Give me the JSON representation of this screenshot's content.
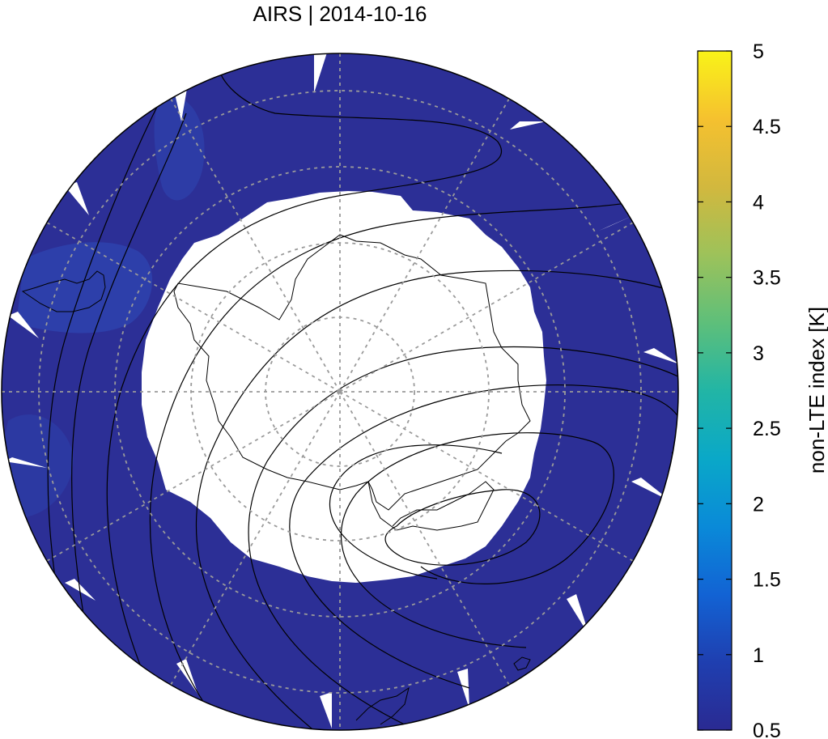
{
  "title": "AIRS | 2014-10-16",
  "colorbar": {
    "label": "non-LTE index [K]",
    "min": 0.5,
    "max": 5,
    "ticks": [
      "0.5",
      "1",
      "1.5",
      "2",
      "2.5",
      "3",
      "3.5",
      "4",
      "4.5",
      "5"
    ],
    "colors": [
      "#2a2a92",
      "#1f3fb0",
      "#1263d4",
      "#0a8ad8",
      "#0aa8c8",
      "#22b5a5",
      "#5ebf7a",
      "#9dc25a",
      "#d2b83e",
      "#f5c12f",
      "#f9f318"
    ]
  },
  "map": {
    "projection": "south-polar-stereographic",
    "data_color": "#2c2f96",
    "no_data_color": "#ffffff",
    "grid": true
  }
}
